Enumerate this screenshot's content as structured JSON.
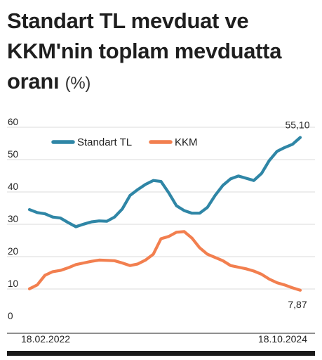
{
  "title_main": "Standart TL mevduat ve KKM'nin toplam mevduatta oranı",
  "title_unit": "(%)",
  "chart_data": {
    "type": "line",
    "title": "Standart TL mevduat ve KKM'nin toplam mevduatta oranı (%)",
    "xlabel": "",
    "ylabel": "",
    "ylim": [
      0,
      60
    ],
    "yticks": [
      0,
      10,
      20,
      30,
      40,
      50,
      60
    ],
    "x_start_label": "18.02.2022",
    "x_end_label": "18.10.2024",
    "grid": true,
    "legend_position": "top-left",
    "series": [
      {
        "name": "Standart TL",
        "color": "#2f86a6",
        "end_label": "55,10",
        "values": [
          32.8,
          31.9,
          31.5,
          30.5,
          30.2,
          28.8,
          27.5,
          28.3,
          29.0,
          29.3,
          29.2,
          30.5,
          33.0,
          37.2,
          39.0,
          40.6,
          41.8,
          41.5,
          38.0,
          34.0,
          32.5,
          31.7,
          31.7,
          33.5,
          37.2,
          40.3,
          42.3,
          43.2,
          42.5,
          41.8,
          44.0,
          48.0,
          50.8,
          52.0,
          53.0,
          55.1
        ]
      },
      {
        "name": "KKM",
        "color": "#f27f4f",
        "end_label": "7,87",
        "values": [
          8.3,
          9.5,
          12.5,
          13.6,
          14.0,
          14.8,
          15.8,
          16.3,
          16.8,
          17.2,
          17.1,
          17.0,
          16.3,
          15.5,
          16.0,
          17.2,
          19.0,
          23.8,
          24.5,
          25.8,
          26.0,
          24.0,
          21.0,
          19.0,
          18.0,
          17.0,
          15.5,
          15.0,
          14.5,
          13.8,
          12.8,
          11.3,
          10.2,
          9.5,
          8.6,
          7.87
        ]
      }
    ]
  }
}
